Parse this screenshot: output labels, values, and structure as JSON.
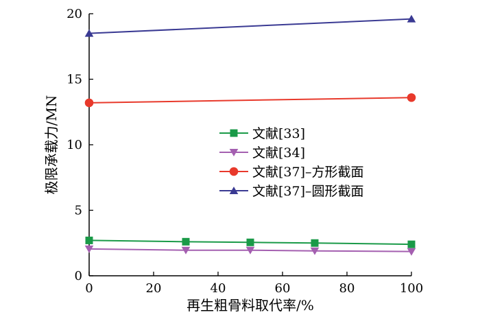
{
  "chart_data": {
    "type": "line",
    "xlabel": "再生粗骨料取代率/%",
    "ylabel": "极限承载力/MN",
    "xlim": [
      0,
      100
    ],
    "ylim": [
      0,
      20
    ],
    "xticks": [
      0,
      20,
      40,
      60,
      80,
      100
    ],
    "yticks": [
      0,
      5,
      10,
      15,
      20
    ],
    "grid": false,
    "legend_position": "center",
    "series": [
      {
        "name": "文献[33]",
        "marker": "square",
        "color": "#1a9a48",
        "x": [
          0,
          30,
          50,
          70,
          100
        ],
        "y": [
          2.7,
          2.6,
          2.55,
          2.5,
          2.4
        ]
      },
      {
        "name": "文献[34]",
        "marker": "triangle-down",
        "color": "#a45fb0",
        "x": [
          0,
          30,
          50,
          70,
          100
        ],
        "y": [
          2.05,
          1.95,
          1.95,
          1.9,
          1.85
        ]
      },
      {
        "name": "文献[37]–方形截面",
        "marker": "circle",
        "color": "#e8392b",
        "x": [
          0,
          100
        ],
        "y": [
          13.2,
          13.6
        ]
      },
      {
        "name": "文献[37]–圆形截面",
        "marker": "triangle-up",
        "color": "#3a3a93",
        "x": [
          0,
          100
        ],
        "y": [
          18.5,
          19.6
        ]
      }
    ]
  }
}
